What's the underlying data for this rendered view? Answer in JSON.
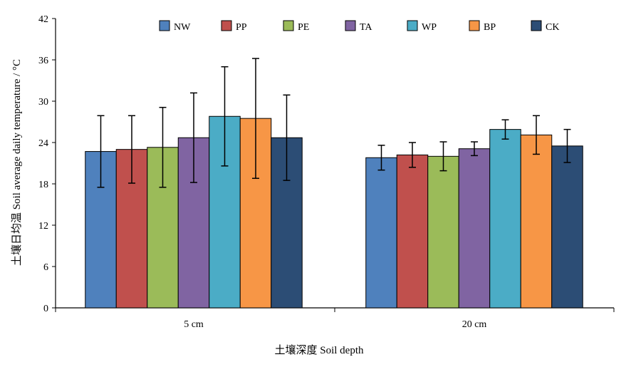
{
  "chart_data": {
    "type": "bar",
    "xlabel": "土壤深度 Soil depth",
    "ylabel": "土壤日均温 Soil average daily temperature / °C",
    "ylim": [
      0,
      42
    ],
    "yticks": [
      0,
      6,
      12,
      18,
      24,
      30,
      36,
      42
    ],
    "categories": [
      "5 cm",
      "20 cm"
    ],
    "legend_position": "top-center",
    "grid": false,
    "series": [
      {
        "name": "NW",
        "color": "#4F81BD",
        "values": [
          22.7,
          21.8
        ],
        "errors": [
          5.2,
          1.8
        ]
      },
      {
        "name": "PP",
        "color": "#C0504D",
        "values": [
          23.0,
          22.2
        ],
        "errors": [
          4.9,
          1.8
        ]
      },
      {
        "name": "PE",
        "color": "#9BBB59",
        "values": [
          23.3,
          22.0
        ],
        "errors": [
          5.8,
          2.1
        ]
      },
      {
        "name": "TA",
        "color": "#8064A2",
        "values": [
          24.7,
          23.1
        ],
        "errors": [
          6.5,
          1.0
        ]
      },
      {
        "name": "WP",
        "color": "#4BACC6",
        "values": [
          27.8,
          25.9
        ],
        "errors": [
          7.2,
          1.4
        ]
      },
      {
        "name": "BP",
        "color": "#F79646",
        "values": [
          27.5,
          25.1
        ],
        "errors": [
          8.7,
          2.8
        ]
      },
      {
        "name": "CK",
        "color": "#2C4D75",
        "values": [
          24.7,
          23.5
        ],
        "errors": [
          6.2,
          2.4
        ]
      }
    ]
  }
}
